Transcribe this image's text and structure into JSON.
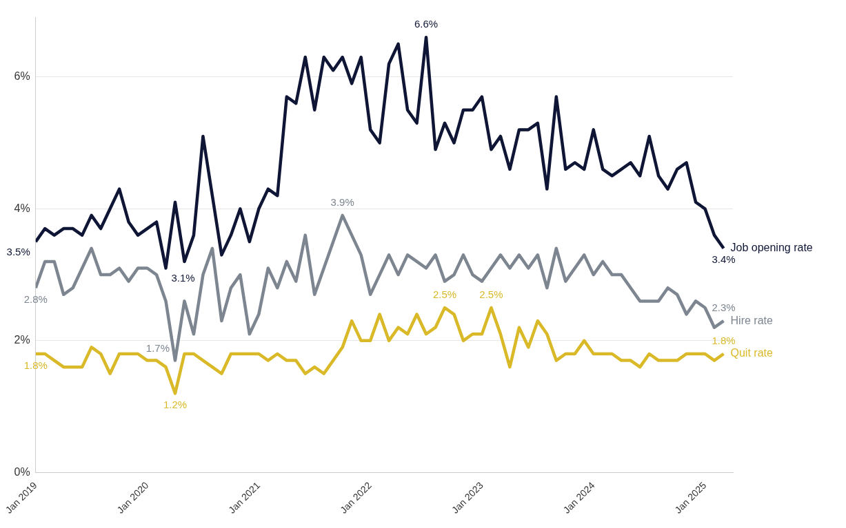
{
  "chart_data": {
    "type": "line",
    "xlim": [
      "2019-01",
      "2025-04"
    ],
    "xticks": [
      {
        "value": "2019-01",
        "label": "Jan 2019"
      },
      {
        "value": "2020-01",
        "label": "Jan 2020"
      },
      {
        "value": "2021-01",
        "label": "Jan 2021"
      },
      {
        "value": "2022-01",
        "label": "Jan 2022"
      },
      {
        "value": "2023-01",
        "label": "Jan 2023"
      },
      {
        "value": "2024-01",
        "label": "Jan 2024"
      },
      {
        "value": "2025-01",
        "label": "Jan 2025"
      }
    ],
    "ylim": [
      0,
      6.9
    ],
    "yticks": [
      {
        "value": 0,
        "label": "0%"
      },
      {
        "value": 2,
        "label": "2%"
      },
      {
        "value": 4,
        "label": "4%"
      },
      {
        "value": 6,
        "label": "6%"
      }
    ],
    "grid": "y",
    "legend": false,
    "marker": "none",
    "line_style": "solid",
    "x": [
      "2019-01",
      "2019-02",
      "2019-03",
      "2019-04",
      "2019-05",
      "2019-06",
      "2019-07",
      "2019-08",
      "2019-09",
      "2019-10",
      "2019-11",
      "2019-12",
      "2020-01",
      "2020-02",
      "2020-03",
      "2020-04",
      "2020-05",
      "2020-06",
      "2020-07",
      "2020-08",
      "2020-09",
      "2020-10",
      "2020-11",
      "2020-12",
      "2021-01",
      "2021-02",
      "2021-03",
      "2021-04",
      "2021-05",
      "2021-06",
      "2021-07",
      "2021-08",
      "2021-09",
      "2021-10",
      "2021-11",
      "2021-12",
      "2022-01",
      "2022-02",
      "2022-03",
      "2022-04",
      "2022-05",
      "2022-06",
      "2022-07",
      "2022-08",
      "2022-09",
      "2022-10",
      "2022-11",
      "2022-12",
      "2023-01",
      "2023-02",
      "2023-03",
      "2023-04",
      "2023-05",
      "2023-06",
      "2023-07",
      "2023-08",
      "2023-09",
      "2023-10",
      "2023-11",
      "2023-12",
      "2024-01",
      "2024-02",
      "2024-03",
      "2024-04",
      "2024-05",
      "2024-06",
      "2024-07",
      "2024-08",
      "2024-09",
      "2024-10",
      "2024-11",
      "2024-12",
      "2025-01",
      "2025-02",
      "2025-03"
    ],
    "series": [
      {
        "name": "Job opening rate",
        "color": "#0f1535",
        "values": [
          3.5,
          3.7,
          3.6,
          3.7,
          3.7,
          3.6,
          3.9,
          3.7,
          4.0,
          4.3,
          3.8,
          3.6,
          3.7,
          3.8,
          3.1,
          4.1,
          3.2,
          3.6,
          5.1,
          4.2,
          3.3,
          3.6,
          4.0,
          3.5,
          4.0,
          4.3,
          4.2,
          5.7,
          5.6,
          6.3,
          5.5,
          6.3,
          6.1,
          6.3,
          5.9,
          6.3,
          5.2,
          5.0,
          6.2,
          6.5,
          5.5,
          5.3,
          6.6,
          4.9,
          5.3,
          5.0,
          5.5,
          5.5,
          5.7,
          4.9,
          5.1,
          4.6,
          5.2,
          5.2,
          5.3,
          4.3,
          5.7,
          4.6,
          4.7,
          4.6,
          5.2,
          4.6,
          4.5,
          4.6,
          4.7,
          4.5,
          5.1,
          4.5,
          4.3,
          4.6,
          4.7,
          4.1,
          4.0,
          3.6,
          3.4
        ],
        "value_labels": [
          "3.5%",
          null,
          null,
          null,
          null,
          null,
          null,
          null,
          null,
          null,
          null,
          null,
          null,
          null,
          "3.1%",
          null,
          null,
          null,
          null,
          null,
          null,
          null,
          null,
          null,
          null,
          null,
          null,
          null,
          null,
          null,
          null,
          null,
          null,
          null,
          null,
          null,
          null,
          null,
          null,
          null,
          null,
          null,
          "6.6%",
          null,
          null,
          null,
          null,
          null,
          null,
          null,
          null,
          null,
          null,
          null,
          null,
          null,
          null,
          null,
          null,
          null,
          null,
          null,
          null,
          null,
          null,
          null,
          null,
          null,
          null,
          null,
          null,
          null,
          null,
          null,
          "3.4%"
        ]
      },
      {
        "name": "Hire rate",
        "color": "#7d8590",
        "values": [
          2.8,
          3.2,
          3.2,
          2.7,
          2.8,
          3.1,
          3.4,
          3.0,
          3.0,
          3.1,
          2.9,
          3.1,
          3.1,
          3.0,
          2.6,
          1.7,
          2.6,
          2.1,
          3.0,
          3.4,
          2.3,
          2.8,
          3.0,
          2.1,
          2.4,
          3.1,
          2.8,
          3.2,
          2.9,
          3.6,
          2.7,
          3.1,
          3.5,
          3.9,
          3.6,
          3.3,
          2.7,
          3.0,
          3.3,
          3.0,
          3.3,
          3.2,
          3.1,
          3.3,
          2.9,
          3.0,
          3.3,
          3.0,
          2.9,
          3.1,
          3.3,
          3.1,
          3.3,
          3.1,
          3.3,
          2.8,
          3.4,
          2.9,
          3.1,
          3.3,
          3.0,
          3.2,
          3.0,
          3.0,
          2.8,
          2.6,
          2.6,
          2.6,
          2.8,
          2.7,
          2.4,
          2.6,
          2.5,
          2.2,
          2.3
        ],
        "value_labels": [
          "2.8%",
          null,
          null,
          null,
          null,
          null,
          null,
          null,
          null,
          null,
          null,
          null,
          null,
          null,
          null,
          "1.7%",
          null,
          null,
          null,
          null,
          null,
          null,
          null,
          null,
          null,
          null,
          null,
          null,
          null,
          null,
          null,
          null,
          null,
          "3.9%",
          null,
          null,
          null,
          null,
          null,
          null,
          null,
          null,
          null,
          null,
          null,
          null,
          null,
          null,
          null,
          null,
          null,
          null,
          null,
          null,
          null,
          null,
          null,
          null,
          null,
          null,
          null,
          null,
          null,
          null,
          null,
          null,
          null,
          null,
          null,
          null,
          null,
          null,
          null,
          null,
          "2.3%"
        ]
      },
      {
        "name": "Quit rate",
        "color": "#d9b927",
        "values": [
          1.8,
          1.8,
          1.7,
          1.6,
          1.6,
          1.6,
          1.9,
          1.8,
          1.5,
          1.8,
          1.8,
          1.8,
          1.7,
          1.7,
          1.6,
          1.2,
          1.8,
          1.8,
          1.7,
          1.6,
          1.5,
          1.8,
          1.8,
          1.8,
          1.8,
          1.7,
          1.8,
          1.7,
          1.7,
          1.5,
          1.6,
          1.5,
          1.7,
          1.9,
          2.3,
          2.0,
          2.0,
          2.4,
          2.0,
          2.2,
          2.1,
          2.4,
          2.1,
          2.2,
          2.5,
          2.4,
          2.0,
          2.1,
          2.1,
          2.5,
          2.1,
          1.6,
          2.2,
          1.9,
          2.3,
          2.1,
          1.7,
          1.8,
          1.8,
          2.0,
          1.8,
          1.8,
          1.8,
          1.7,
          1.7,
          1.6,
          1.8,
          1.7,
          1.7,
          1.7,
          1.8,
          1.8,
          1.8,
          1.7,
          1.8
        ],
        "value_labels": [
          "1.8%",
          null,
          null,
          null,
          null,
          null,
          null,
          null,
          null,
          null,
          null,
          null,
          null,
          null,
          null,
          "1.2%",
          null,
          null,
          null,
          null,
          null,
          null,
          null,
          null,
          null,
          null,
          null,
          null,
          null,
          null,
          null,
          null,
          null,
          null,
          null,
          null,
          null,
          null,
          null,
          null,
          null,
          null,
          null,
          null,
          "2.5%",
          null,
          null,
          null,
          null,
          "2.5%",
          null,
          null,
          null,
          null,
          null,
          null,
          null,
          null,
          null,
          null,
          null,
          null,
          null,
          null,
          null,
          null,
          null,
          null,
          null,
          null,
          null,
          null,
          null,
          null,
          "1.8%"
        ]
      }
    ]
  }
}
